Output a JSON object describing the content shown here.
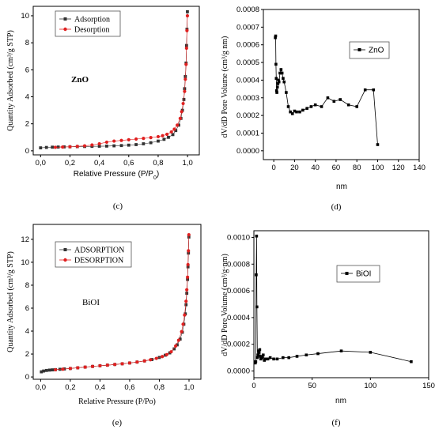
{
  "chart_data": [
    {
      "id": "c",
      "type": "scatter",
      "caption": "(c)",
      "annotation": "ZnO",
      "xlabel": "Relative Pressure (P/P",
      "xlabel_sub": "0",
      "xlabel_end": ")",
      "ylabel": "Quantity Adsorbed (cm³/g STP)",
      "xlim": [
        -0.05,
        1.08
      ],
      "ylim": [
        -0.3,
        10.7
      ],
      "xticks": [
        0.0,
        0.2,
        0.4,
        0.6,
        0.8,
        1.0
      ],
      "xtick_labels": [
        "0,0",
        "0,2",
        "0,4",
        "0,6",
        "0,8",
        "1,0"
      ],
      "yticks": [
        0,
        2,
        4,
        6,
        8,
        10
      ],
      "ytick_labels": [
        "0",
        "2",
        "4",
        "6",
        "8",
        "10"
      ],
      "legend_position": "top-left",
      "series": [
        {
          "name": "Adsorption",
          "color": "#333333",
          "marker": "square",
          "x": [
            0.0,
            0.04,
            0.08,
            0.12,
            0.16,
            0.2,
            0.25,
            0.3,
            0.35,
            0.4,
            0.45,
            0.5,
            0.55,
            0.6,
            0.65,
            0.7,
            0.75,
            0.8,
            0.84,
            0.87,
            0.9,
            0.92,
            0.94,
            0.955,
            0.965,
            0.975,
            0.98,
            0.985,
            0.99,
            0.993,
            0.996,
            0.999
          ],
          "y": [
            0.22,
            0.25,
            0.27,
            0.28,
            0.29,
            0.3,
            0.31,
            0.32,
            0.33,
            0.34,
            0.35,
            0.37,
            0.39,
            0.42,
            0.46,
            0.52,
            0.6,
            0.72,
            0.85,
            1.0,
            1.2,
            1.5,
            1.9,
            2.4,
            3.0,
            3.8,
            4.6,
            5.5,
            6.5,
            7.8,
            9.0,
            10.3
          ]
        },
        {
          "name": "Desorption",
          "color": "#e02020",
          "marker": "circle",
          "x": [
            0.999,
            0.996,
            0.993,
            0.99,
            0.985,
            0.98,
            0.97,
            0.96,
            0.95,
            0.93,
            0.91,
            0.89,
            0.86,
            0.83,
            0.8,
            0.75,
            0.7,
            0.65,
            0.6,
            0.55,
            0.5,
            0.45,
            0.4,
            0.35,
            0.3,
            0.25,
            0.2,
            0.15,
            0.1
          ],
          "y": [
            10.0,
            8.9,
            7.6,
            6.4,
            5.3,
            4.4,
            3.5,
            2.9,
            2.4,
            1.9,
            1.6,
            1.4,
            1.22,
            1.12,
            1.05,
            0.98,
            0.92,
            0.87,
            0.82,
            0.77,
            0.72,
            0.64,
            0.52,
            0.43,
            0.37,
            0.33,
            0.3,
            0.28,
            0.26
          ]
        }
      ]
    },
    {
      "id": "d",
      "type": "line",
      "caption": "(d)",
      "xlabel": "nm",
      "ylabel": "dV/dD Pore Volume (cm³/g nm)",
      "xlim": [
        -10,
        140
      ],
      "ylim": [
        -5e-05,
        0.0008
      ],
      "xticks": [
        0,
        20,
        40,
        60,
        80,
        100,
        120,
        140
      ],
      "xtick_labels": [
        "0",
        "20",
        "40",
        "60",
        "80",
        "100",
        "120",
        "140"
      ],
      "yticks": [
        0.0,
        0.0001,
        0.0002,
        0.0003,
        0.0004,
        0.0005,
        0.0006,
        0.0007,
        0.0008
      ],
      "ytick_labels": [
        "0.0000",
        "0.0001",
        "0.0002",
        "0.0003",
        "0.0004",
        "0.0005",
        "0.0006",
        "0.0007",
        "0.0008"
      ],
      "legend_position": "top-right",
      "series": [
        {
          "name": "ZnO",
          "color": "#000000",
          "marker": "square",
          "x": [
            1.5,
            1.8,
            2.1,
            2.4,
            2.7,
            3.0,
            3.5,
            4.0,
            4.5,
            5.0,
            6.0,
            7.0,
            8.0,
            9.0,
            10.0,
            12.0,
            14.0,
            16.0,
            18.0,
            20.0,
            22.0,
            25.0,
            28.0,
            32.0,
            36.0,
            40.0,
            46.0,
            52.0,
            58.0,
            64.0,
            72.0,
            80.0,
            88.0,
            96.0,
            100.0
          ],
          "y": [
            0.00064,
            0.00065,
            0.00049,
            0.00041,
            0.00034,
            0.00033,
            0.00036,
            0.00038,
            0.0004,
            0.00039,
            0.00044,
            0.00046,
            0.00044,
            0.00041,
            0.00039,
            0.00033,
            0.00025,
            0.00022,
            0.00021,
            0.000225,
            0.00022,
            0.00022,
            0.00023,
            0.00024,
            0.00025,
            0.00026,
            0.00025,
            0.0003,
            0.00028,
            0.00029,
            0.00026,
            0.00025,
            0.000345,
            0.000345,
            3.5e-05
          ]
        }
      ]
    },
    {
      "id": "e",
      "type": "scatter",
      "caption": "(e)",
      "annotation": "BiOI",
      "xlabel": "Relative Pressure (P/Po)",
      "ylabel": "Quantity Adsorbed (cm³/g STP)",
      "xlim": [
        -0.05,
        1.08
      ],
      "ylim": [
        -0.2,
        13.3
      ],
      "xticks": [
        0.0,
        0.2,
        0.4,
        0.6,
        0.8,
        1.0
      ],
      "xtick_labels": [
        "0,0",
        "0,2",
        "0,4",
        "0,6",
        "0,8",
        "1,0"
      ],
      "yticks": [
        0,
        2,
        4,
        6,
        8,
        10,
        12
      ],
      "ytick_labels": [
        "0",
        "2",
        "4",
        "6",
        "8",
        "10",
        "12"
      ],
      "legend_position": "top-left",
      "series": [
        {
          "name": "ADSORPTION",
          "color": "#333333",
          "marker": "square",
          "x": [
            0.005,
            0.02,
            0.04,
            0.06,
            0.08,
            0.1,
            0.13,
            0.16,
            0.2,
            0.25,
            0.3,
            0.35,
            0.4,
            0.45,
            0.5,
            0.55,
            0.6,
            0.65,
            0.7,
            0.75,
            0.8,
            0.84,
            0.87,
            0.9,
            0.92,
            0.94,
            0.955,
            0.965,
            0.975,
            0.98,
            0.985,
            0.99,
            0.993,
            0.996,
            0.999
          ],
          "y": [
            0.45,
            0.52,
            0.57,
            0.6,
            0.62,
            0.64,
            0.67,
            0.7,
            0.74,
            0.8,
            0.86,
            0.92,
            0.98,
            1.03,
            1.09,
            1.15,
            1.22,
            1.3,
            1.4,
            1.52,
            1.7,
            1.9,
            2.1,
            2.45,
            2.8,
            3.3,
            3.9,
            4.6,
            5.5,
            6.3,
            7.3,
            8.5,
            9.6,
            10.8,
            12.2
          ]
        },
        {
          "name": "DESORPTION",
          "color": "#e02020",
          "marker": "circle",
          "x": [
            0.999,
            0.996,
            0.993,
            0.99,
            0.985,
            0.98,
            0.97,
            0.96,
            0.95,
            0.93,
            0.91,
            0.88,
            0.85,
            0.82,
            0.78,
            0.74,
            0.7,
            0.65,
            0.6,
            0.55,
            0.5,
            0.45,
            0.4,
            0.35,
            0.3,
            0.25,
            0.2,
            0.15,
            0.1
          ],
          "y": [
            12.4,
            11.0,
            9.8,
            8.7,
            7.6,
            6.6,
            5.4,
            4.6,
            3.95,
            3.2,
            2.7,
            2.2,
            1.95,
            1.78,
            1.62,
            1.5,
            1.4,
            1.3,
            1.22,
            1.15,
            1.09,
            1.03,
            0.98,
            0.92,
            0.86,
            0.8,
            0.74,
            0.68,
            0.63
          ]
        }
      ]
    },
    {
      "id": "f",
      "type": "line",
      "caption": "(f)",
      "xlabel": "nm",
      "ylabel": "dV/dD Pore Volume (cm³/g·nm)",
      "xlim": [
        0,
        150
      ],
      "ylim": [
        -5e-05,
        0.00105
      ],
      "xticks": [
        0,
        50,
        100,
        150
      ],
      "xtick_labels": [
        "0",
        "50",
        "100",
        "150"
      ],
      "yticks": [
        0.0,
        0.0002,
        0.0004,
        0.0006,
        0.0008,
        0.001
      ],
      "ytick_labels": [
        "0.0000",
        "0.0002",
        "0.0004",
        "0.0006",
        "0.0008",
        "0.0010"
      ],
      "legend_position": "top-right",
      "series": [
        {
          "name": "BiOI",
          "color": "#000000",
          "marker": "square",
          "x": [
            1.2,
            1.6,
            2.0,
            2.3,
            2.6,
            3.0,
            3.5,
            4.0,
            4.5,
            5.0,
            5.5,
            6.0,
            7.0,
            8.0,
            9.0,
            10.0,
            12.0,
            14.0,
            17.0,
            20.0,
            25.0,
            30.0,
            37.0,
            45.0,
            55.0,
            75.0,
            100.0,
            135.0
          ],
          "y": [
            6e-05,
            7e-05,
            0.00072,
            0.00101,
            0.00048,
            0.0001,
            0.00012,
            0.00015,
            0.00014,
            0.00016,
            0.00011,
            9e-05,
            0.0001,
            0.00012,
            8e-05,
            9e-05,
            9e-05,
            0.0001,
            9e-05,
            9e-05,
            0.0001,
            0.0001,
            0.00011,
            0.00012,
            0.00013,
            0.00015,
            0.00014,
            7e-05
          ]
        }
      ]
    }
  ]
}
